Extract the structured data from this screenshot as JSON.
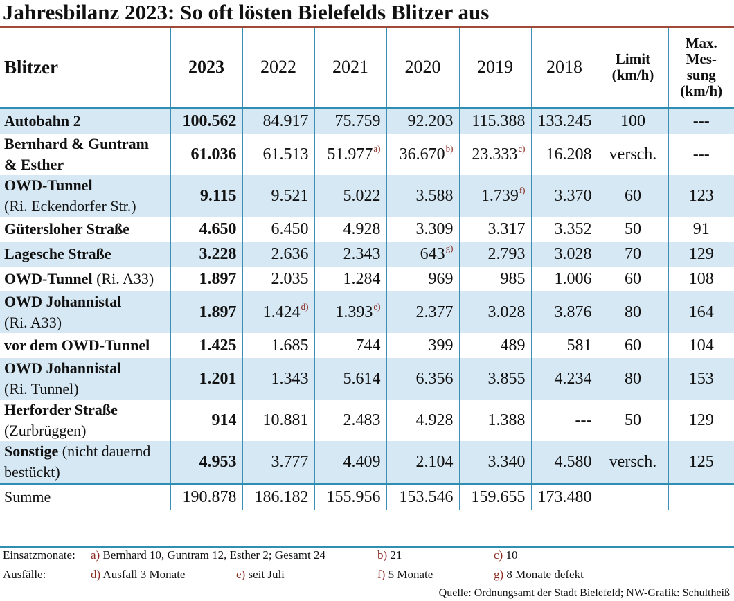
{
  "title": "Jahresbilanz 2023: So oft lösten Bielefelds Blitzer aus",
  "header": {
    "blitzer": "Blitzer",
    "years": [
      "2023",
      "2022",
      "2021",
      "2020",
      "2019",
      "2018"
    ],
    "limit_line1": "Limit",
    "limit_line2": "(km/h)",
    "max_line1": "Max.",
    "max_line2": "Mes-",
    "max_line3": "sung",
    "max_line4": "(km/h)"
  },
  "rows": [
    {
      "name_bold": "Autobahn 2",
      "name_rest": "",
      "line2": "",
      "v": [
        "100.562",
        "84.917",
        "75.759",
        "92.203",
        "115.388",
        "133.245"
      ],
      "sup": [
        "",
        "",
        "",
        "",
        "",
        ""
      ],
      "limit": "100",
      "max": "---"
    },
    {
      "name_bold": "Bernhard & Guntram",
      "name_rest": "",
      "line2": "& Esther",
      "line2_bold": true,
      "v": [
        "61.036",
        "61.513",
        "51.977",
        "36.670",
        "23.333",
        "16.208"
      ],
      "sup": [
        "",
        "",
        "a)",
        "b)",
        "c)",
        ""
      ],
      "limit": "versch.",
      "max": "---"
    },
    {
      "name_bold": "OWD-Tunnel",
      "name_rest": "",
      "line2": "(Ri. Eckendorfer Str.)",
      "v": [
        "9.115",
        "9.521",
        "5.022",
        "3.588",
        "1.739",
        "3.370"
      ],
      "sup": [
        "",
        "",
        "",
        "",
        "f)",
        ""
      ],
      "limit": "60",
      "max": "123"
    },
    {
      "name_bold": "Gütersloher Straße",
      "name_rest": "",
      "line2": "",
      "v": [
        "4.650",
        "6.450",
        "4.928",
        "3.309",
        "3.317",
        "3.352"
      ],
      "sup": [
        "",
        "",
        "",
        "",
        "",
        ""
      ],
      "limit": "50",
      "max": "91"
    },
    {
      "name_bold": "Lagesche Straße",
      "name_rest": "",
      "line2": "",
      "v": [
        "3.228",
        "2.636",
        "2.343",
        "643",
        "2.793",
        "3.028"
      ],
      "sup": [
        "",
        "",
        "",
        "g)",
        "",
        ""
      ],
      "limit": "70",
      "max": "129"
    },
    {
      "name_bold": "OWD-Tunnel",
      "name_rest": " (Ri. A33)",
      "line2": "",
      "v": [
        "1.897",
        "2.035",
        "1.284",
        "969",
        "985",
        "1.006"
      ],
      "sup": [
        "",
        "",
        "",
        "",
        "",
        ""
      ],
      "limit": "60",
      "max": "108"
    },
    {
      "name_bold": "OWD Johannistal",
      "name_rest": "",
      "line2": "(Ri. A33)",
      "v": [
        "1.897",
        "1.424",
        "1.393",
        "2.377",
        "3.028",
        "3.876"
      ],
      "sup": [
        "",
        "d)",
        "e)",
        "",
        "",
        ""
      ],
      "limit": "80",
      "max": "164"
    },
    {
      "name_bold": "vor dem OWD-Tunnel",
      "name_rest": "",
      "line2": "",
      "v": [
        "1.425",
        "1.685",
        "744",
        "399",
        "489",
        "581"
      ],
      "sup": [
        "",
        "",
        "",
        "",
        "",
        ""
      ],
      "limit": "60",
      "max": "104"
    },
    {
      "name_bold": "OWD Johannistal",
      "name_rest": "",
      "line2": "(Ri. Tunnel)",
      "v": [
        "1.201",
        "1.343",
        "5.614",
        "6.356",
        "3.855",
        "4.234"
      ],
      "sup": [
        "",
        "",
        "",
        "",
        "",
        ""
      ],
      "limit": "80",
      "max": "153"
    },
    {
      "name_bold": "Herforder Straße",
      "name_rest": "",
      "line2": "(Zurbrüggen)",
      "v": [
        "914",
        "10.881",
        "2.483",
        "4.928",
        "1.388",
        "---"
      ],
      "sup": [
        "",
        "",
        "",
        "",
        "",
        ""
      ],
      "limit": "50",
      "max": "129"
    },
    {
      "name_bold": "Sonstige",
      "name_rest": " (nicht dauernd",
      "line2": "bestückt)",
      "v": [
        "4.953",
        "3.777",
        "4.409",
        "2.104",
        "3.340",
        "4.580"
      ],
      "sup": [
        "",
        "",
        "",
        "",
        "",
        ""
      ],
      "limit": "versch.",
      "max": "125"
    }
  ],
  "sum": {
    "label": "Summe",
    "v": [
      "190.878",
      "186.182",
      "155.956",
      "153.546",
      "159.655",
      "173.480"
    ]
  },
  "footnotes": {
    "einsatz_label": "Einsatzmonate:",
    "a": "a)",
    "a_text": " Bernhard 10, Guntram 12, Esther 2; Gesamt 24",
    "b": "b)",
    "b_text": " 21",
    "c": "c)",
    "c_text": " 10",
    "ausfaelle_label": "Ausfälle:",
    "d": "d)",
    "d_text": " Ausfall 3 Monate",
    "e": "e)",
    "e_text": " seit Juli",
    "f": "f)",
    "f_text": " 5 Monate",
    "g": "g)",
    "g_text": " 8 Monate defekt"
  },
  "source": "Quelle: Ordnungsamt der Stadt Bielefeld; NW-Grafik: Schultheiß",
  "colors": {
    "rule": "#2e8fb3",
    "shade": "#d6e8f4",
    "title_rule": "#a04a3a",
    "footnote_mark": "#8a2a20"
  }
}
